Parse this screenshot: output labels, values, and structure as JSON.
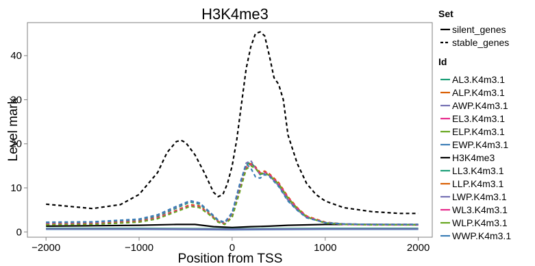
{
  "chart_data": {
    "type": "line",
    "title": "H3K4me3",
    "xlabel": "Position from TSS",
    "ylabel": "Level mark",
    "xlim": [
      -2200,
      2150
    ],
    "ylim": [
      -1.2,
      47.5
    ],
    "xticks": [
      -2000,
      -1000,
      0,
      1000,
      2000
    ],
    "xtick_labels": [
      "-2000",
      "-1000",
      "0",
      "1000",
      "2000"
    ],
    "yticks": [
      0,
      10,
      20,
      30,
      40
    ],
    "ytick_labels": [
      "0",
      "10",
      "20",
      "30",
      "40"
    ],
    "grid": false,
    "legend_position": "right",
    "legend_set_title": "Set",
    "legend_set": [
      {
        "label": "silent_genes",
        "dash": "solid"
      },
      {
        "label": "stable_genes",
        "dash": "dashed"
      }
    ],
    "legend_id_title": "Id",
    "legend_id": [
      {
        "label": "AL3.K4m3.1",
        "color": "#1b9e77"
      },
      {
        "label": "ALP.K4m3.1",
        "color": "#d95f02"
      },
      {
        "label": "AWP.K4m3.1",
        "color": "#7570b3"
      },
      {
        "label": "EL3.K4m3.1",
        "color": "#e7298a"
      },
      {
        "label": "ELP.K4m3.1",
        "color": "#66a61e"
      },
      {
        "label": "EWP.K4m3.1",
        "color": "#3a7db5"
      },
      {
        "label": "H3K4me3",
        "color": "#000000"
      },
      {
        "label": "LL3.K4m3.1",
        "color": "#1b9e77"
      },
      {
        "label": "LLP.K4m3.1",
        "color": "#d95f02"
      },
      {
        "label": "LWP.K4m3.1",
        "color": "#7570b3"
      },
      {
        "label": "WL3.K4m3.1",
        "color": "#e7298a"
      },
      {
        "label": "WLP.K4m3.1",
        "color": "#66a61e"
      },
      {
        "label": "WWP.K4m3.1",
        "color": "#3a7db5"
      }
    ],
    "series": [
      {
        "id": "H3K4me3",
        "set": "stable_genes",
        "color": "#000000",
        "dash": "dashed",
        "x": [
          -2000,
          -1800,
          -1500,
          -1200,
          -1000,
          -800,
          -700,
          -600,
          -550,
          -500,
          -400,
          -300,
          -200,
          -150,
          -100,
          -50,
          0,
          50,
          100,
          150,
          200,
          250,
          300,
          350,
          400,
          450,
          500,
          550,
          600,
          700,
          800,
          900,
          1000,
          1200,
          1500,
          1800,
          2000
        ],
        "y": [
          6.3,
          5.9,
          5.3,
          6.2,
          8.5,
          13.5,
          18,
          20.5,
          20.8,
          20.3,
          17.5,
          13.5,
          9,
          8,
          8.5,
          11,
          15,
          21,
          29,
          37,
          42,
          45,
          45.4,
          44.5,
          40,
          35,
          33.5,
          30,
          22,
          15.5,
          11,
          8.5,
          7,
          5.5,
          4.6,
          4.2,
          4.2
        ]
      },
      {
        "id": "H3K4me3",
        "set": "silent_genes",
        "color": "#000000",
        "dash": "solid",
        "x": [
          -2000,
          -1500,
          -1000,
          -600,
          -400,
          -200,
          0,
          200,
          400,
          600,
          800,
          1000,
          1200,
          1500,
          2000
        ],
        "y": [
          1.3,
          1.4,
          1.5,
          1.7,
          1.7,
          1.2,
          1.0,
          1.2,
          1.3,
          1.5,
          1.6,
          1.7,
          1.7,
          1.7,
          1.6
        ]
      },
      {
        "id": "AL3.K4m3.1",
        "set": "stable_genes",
        "color": "#1b9e77",
        "dash": "dashed",
        "x": [
          -2000,
          -1500,
          -1000,
          -800,
          -600,
          -450,
          -350,
          -250,
          -150,
          -80,
          0,
          80,
          150,
          200,
          250,
          300,
          350,
          400,
          500,
          600,
          700,
          800,
          1000,
          1200,
          1500,
          2000
        ],
        "y": [
          1.9,
          2.0,
          2.6,
          3.6,
          5.4,
          6.8,
          6.3,
          4.5,
          2.5,
          2.0,
          4,
          10,
          15.2,
          15.8,
          14.5,
          13,
          13.5,
          13,
          10.8,
          7.5,
          5.2,
          3.4,
          2.1,
          1.8,
          1.7,
          1.7
        ]
      },
      {
        "id": "ALP.K4m3.1",
        "set": "stable_genes",
        "color": "#d95f02",
        "dash": "dashed",
        "x": [
          -2000,
          -1500,
          -1000,
          -800,
          -600,
          -450,
          -350,
          -250,
          -150,
          -80,
          0,
          80,
          150,
          200,
          250,
          300,
          350,
          400,
          500,
          600,
          700,
          800,
          1000,
          1200,
          1500,
          2000
        ],
        "y": [
          1.8,
          1.9,
          2.4,
          3.3,
          4.9,
          6.2,
          5.9,
          4.2,
          2.4,
          1.9,
          3.6,
          9.5,
          14.8,
          15.5,
          14.8,
          13.5,
          13.8,
          13.2,
          11.2,
          8,
          5.5,
          3.6,
          2.2,
          1.8,
          1.7,
          1.7
        ]
      },
      {
        "id": "AWP.K4m3.1",
        "set": "stable_genes",
        "color": "#7570b3",
        "dash": "dashed",
        "x": [
          -2000,
          -1500,
          -1000,
          -800,
          -600,
          -450,
          -350,
          -250,
          -150,
          -80,
          0,
          80,
          150,
          200,
          250,
          300,
          350,
          400,
          500,
          600,
          700,
          800,
          1000,
          1200,
          1500,
          2000
        ],
        "y": [
          2.1,
          2.2,
          2.8,
          3.8,
          5.6,
          7.0,
          6.5,
          4.6,
          2.6,
          2.1,
          4.2,
          10.5,
          15.6,
          16.2,
          14.5,
          13,
          13.3,
          12.8,
          10.5,
          7.2,
          5,
          3.3,
          2.1,
          1.8,
          1.7,
          1.7
        ]
      },
      {
        "id": "EL3.K4m3.1",
        "set": "stable_genes",
        "color": "#e7298a",
        "dash": "dashed",
        "x": [
          -2000,
          -1500,
          -1000,
          -800,
          -600,
          -450,
          -350,
          -250,
          -150,
          -80,
          0,
          80,
          150,
          200,
          250,
          300,
          350,
          400,
          500,
          600,
          700,
          800,
          1000,
          1200,
          1500,
          2000
        ],
        "y": [
          1.7,
          1.8,
          2.3,
          3.2,
          4.8,
          6.0,
          5.7,
          4.1,
          2.3,
          1.8,
          3.5,
          9.3,
          14.5,
          15.3,
          14.6,
          13.3,
          13.6,
          13.0,
          11.0,
          7.8,
          5.4,
          3.5,
          2.1,
          1.7,
          1.6,
          1.6
        ]
      },
      {
        "id": "ELP.K4m3.1",
        "set": "stable_genes",
        "color": "#66a61e",
        "dash": "dashed",
        "x": [
          -2000,
          -1500,
          -1000,
          -800,
          -600,
          -450,
          -350,
          -250,
          -150,
          -80,
          0,
          80,
          150,
          200,
          250,
          300,
          350,
          400,
          500,
          600,
          700,
          800,
          1000,
          1200,
          1500,
          2000
        ],
        "y": [
          1.6,
          1.7,
          2.2,
          3.0,
          4.6,
          5.8,
          5.5,
          4.0,
          2.2,
          1.7,
          3.3,
          9.0,
          14.2,
          15.0,
          14.4,
          13.2,
          13.4,
          12.8,
          10.9,
          7.7,
          5.3,
          3.4,
          2.0,
          1.7,
          1.6,
          1.6
        ]
      },
      {
        "id": "EWP.K4m3.1",
        "set": "stable_genes",
        "color": "#3a7db5",
        "dash": "dashed",
        "x": [
          -2000,
          -1500,
          -1000,
          -800,
          -600,
          -450,
          -350,
          -250,
          -150,
          -80,
          0,
          80,
          150,
          200,
          250,
          300,
          350,
          400,
          500,
          600,
          700,
          800,
          1000,
          1200,
          1500,
          2000
        ],
        "y": [
          2.2,
          2.3,
          2.9,
          3.9,
          5.8,
          7.1,
          6.6,
          4.7,
          2.7,
          2.2,
          4.4,
          10.8,
          15.4,
          14.5,
          12.5,
          12.2,
          13.0,
          12.6,
          10.3,
          7.0,
          4.9,
          3.2,
          2.1,
          1.8,
          1.7,
          1.7
        ]
      },
      {
        "id": "AL3.K4m3.1",
        "set": "silent_genes",
        "color": "#1b9e77",
        "dash": "solid",
        "x": [
          -2000,
          -1000,
          0,
          1000,
          2000
        ],
        "y": [
          0.8,
          0.8,
          0.7,
          0.8,
          0.8
        ]
      },
      {
        "id": "EWP.K4m3.1",
        "set": "silent_genes",
        "color": "#3a7db5",
        "dash": "solid",
        "x": [
          -2000,
          -1000,
          0,
          1000,
          2000
        ],
        "y": [
          0.6,
          0.6,
          0.5,
          0.6,
          0.6
        ]
      },
      {
        "id": "AWP.K4m3.1",
        "set": "silent_genes",
        "color": "#7570b3",
        "dash": "solid",
        "x": [
          -2000,
          -1000,
          0,
          1000,
          2000
        ],
        "y": [
          0.7,
          0.7,
          0.6,
          0.7,
          0.7
        ]
      }
    ]
  }
}
